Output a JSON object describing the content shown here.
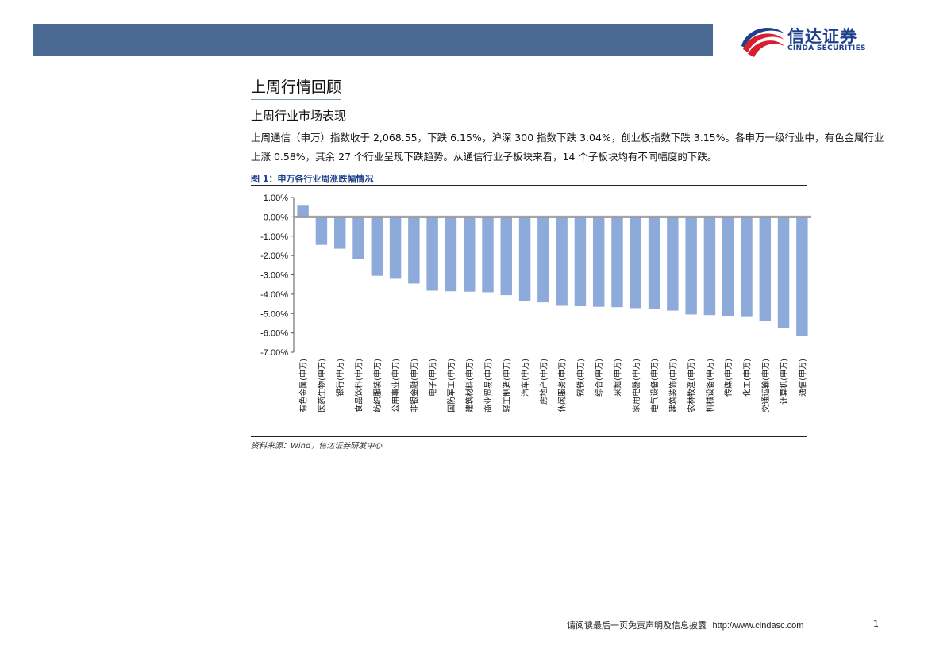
{
  "header": {
    "logo_cn": "信达证券",
    "logo_en": "CINDA SECURITIES"
  },
  "section_title": "上周行情回顾",
  "subtitle": "上周行业市场表现",
  "paragraph": "上周通信（申万）指数收于 2,068.55，下跌 6.15%，沪深 300 指数下跌 3.04%，创业板指数下跌 3.15%。各申万一级行业中，有色金属行业上涨 0.58%，其余 27 个行业呈现下跌趋势。从通信行业子板块来看，14 个子板块均有不同幅度的下跌。",
  "figure_title": "图 1：申万各行业周涨跌幅情况",
  "source": "资料来源：Wind，信达证券研发中心",
  "footer": {
    "disclaimer": "请阅读最后一页免责声明及信息披露",
    "url": "http://www.cindasc.com",
    "page": "1"
  },
  "colors": {
    "bar": "#8eaadb",
    "topbar": "#4a6a93",
    "brand_blue": "#1d3f8c",
    "brand_red": "#d6202f"
  },
  "chart_data": {
    "type": "bar",
    "title": "申万各行业周涨跌幅情况",
    "xlabel": "",
    "ylabel": "",
    "ylim": [
      -7.0,
      1.0
    ],
    "yticks": [
      "1.00%",
      "0.00%",
      "-1.00%",
      "-2.00%",
      "-3.00%",
      "-4.00%",
      "-5.00%",
      "-6.00%",
      "-7.00%"
    ],
    "ytick_values": [
      1,
      0,
      -1,
      -2,
      -3,
      -4,
      -5,
      -6,
      -7
    ],
    "categories": [
      "有色金属(申万)",
      "医药生物(申万)",
      "银行(申万)",
      "食品饮料(申万)",
      "纺织服装(申万)",
      "公用事业(申万)",
      "非银金融(申万)",
      "电子(申万)",
      "国防军工(申万)",
      "建筑材料(申万)",
      "商业贸易(申万)",
      "轻工制造(申万)",
      "汽车(申万)",
      "房地产(申万)",
      "休闲服务(申万)",
      "钢铁(申万)",
      "综合(申万)",
      "采掘(申万)",
      "家用电器(申万)",
      "电气设备(申万)",
      "建筑装饰(申万)",
      "农林牧渔(申万)",
      "机械设备(申万)",
      "传媒(申万)",
      "化工(申万)",
      "交通运输(申万)",
      "计算机(申万)",
      "通信(申万)"
    ],
    "values": [
      0.58,
      -1.45,
      -1.65,
      -2.2,
      -3.05,
      -3.2,
      -3.45,
      -3.82,
      -3.85,
      -3.87,
      -3.9,
      -4.05,
      -4.35,
      -4.42,
      -4.6,
      -4.62,
      -4.65,
      -4.67,
      -4.72,
      -4.75,
      -4.85,
      -5.05,
      -5.08,
      -5.15,
      -5.18,
      -5.4,
      -5.75,
      -6.15
    ]
  }
}
